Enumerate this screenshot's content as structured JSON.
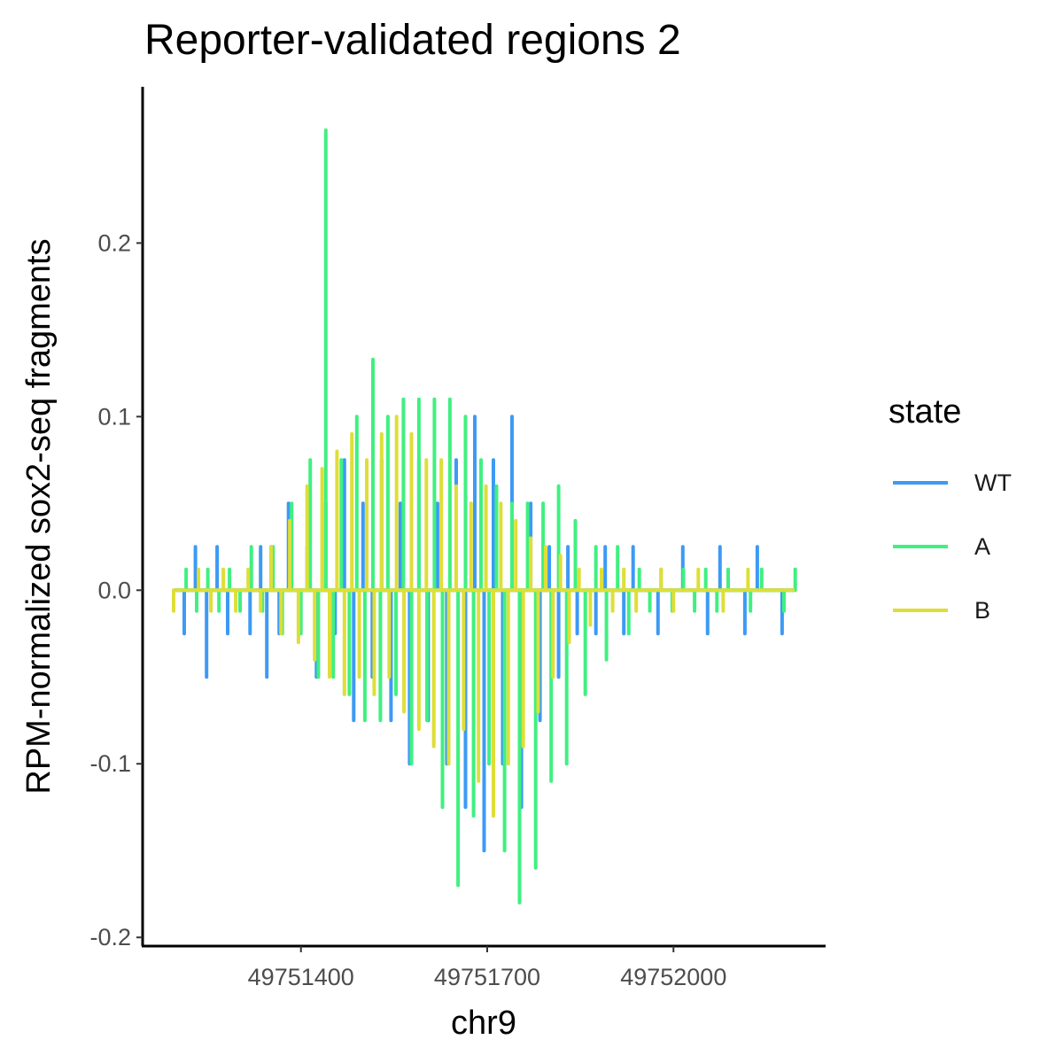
{
  "chart_data": {
    "type": "line",
    "title": "Reporter-validated regions 2",
    "xlabel": "chr9",
    "ylabel": "RPM-normalized sox2-seq fragments",
    "xlim": [
      49751145,
      49752245
    ],
    "ylim": [
      -0.205,
      0.29
    ],
    "x_ticks": [
      49751400,
      49751700,
      49752000
    ],
    "x_tick_labels": [
      "49751400",
      "49751700",
      "49752000"
    ],
    "y_ticks": [
      -0.2,
      -0.1,
      0.0,
      0.1,
      0.2
    ],
    "y_tick_labels": [
      "-0.2",
      "-0.1",
      "0.0",
      "0.1",
      "0.2"
    ],
    "grid": false,
    "legend_title": "state",
    "legend_position": "right",
    "series": [
      {
        "name": "WT",
        "color": "#3d9af5",
        "x": [
          49751195,
          49751212,
          49751230,
          49751248,
          49751265,
          49751282,
          49751300,
          49751318,
          49751335,
          49751345,
          49751352,
          49751365,
          49751380,
          49751398,
          49751410,
          49751425,
          49751440,
          49751455,
          49751470,
          49751485,
          49751500,
          49751515,
          49751530,
          49751545,
          49751560,
          49751575,
          49751590,
          49751605,
          49751620,
          49751635,
          49751650,
          49751665,
          49751680,
          49751695,
          49751710,
          49751725,
          49751740,
          49751755,
          49751770,
          49751785,
          49751800,
          49751815,
          49751830,
          49751845,
          49751860,
          49751875,
          49751890,
          49751905,
          49751920,
          49751935,
          49751955,
          49751975,
          49751995,
          49752015,
          49752035,
          49752055,
          49752075,
          49752095,
          49752115,
          49752135,
          49752155,
          49752175,
          49752195
        ],
        "y": [
          0.0,
          -0.025,
          0.025,
          -0.05,
          0.025,
          -0.025,
          0.0,
          -0.025,
          0.025,
          -0.05,
          0.025,
          -0.025,
          0.05,
          -0.025,
          0.025,
          -0.05,
          0.05,
          -0.025,
          0.075,
          -0.075,
          0.05,
          -0.05,
          0.075,
          -0.075,
          0.05,
          -0.1,
          0.075,
          -0.075,
          0.05,
          -0.1,
          0.075,
          -0.125,
          0.1,
          -0.15,
          0.075,
          -0.1,
          0.1,
          -0.125,
          0.05,
          -0.075,
          0.025,
          -0.05,
          0.025,
          -0.025,
          0.0,
          -0.025,
          0.025,
          0.0,
          -0.025,
          0.025,
          0.0,
          -0.025,
          0.0,
          0.025,
          0.0,
          -0.025,
          0.025,
          0.0,
          -0.025,
          0.025,
          0.0,
          -0.025,
          0.0
        ]
      },
      {
        "name": "A",
        "color": "#40f080",
        "x": [
          49751198,
          49751215,
          49751232,
          49751250,
          49751268,
          49751285,
          49751302,
          49751320,
          49751338,
          49751355,
          49751370,
          49751385,
          49751400,
          49751415,
          49751428,
          49751440,
          49751452,
          49751465,
          49751478,
          49751490,
          49751503,
          49751516,
          49751528,
          49751540,
          49751553,
          49751565,
          49751578,
          49751590,
          49751603,
          49751615,
          49751628,
          49751640,
          49751653,
          49751665,
          49751678,
          49751690,
          49751703,
          49751715,
          49751728,
          49751740,
          49751752,
          49751765,
          49751778,
          49751790,
          49751803,
          49751815,
          49751828,
          49751842,
          49751858,
          49751875,
          49751892,
          49751910,
          49751928,
          49751945,
          49751962,
          49751980,
          49751998,
          49752016,
          49752034,
          49752052,
          49752070,
          49752088,
          49752106,
          49752124,
          49752142,
          49752160,
          49752178,
          49752196
        ],
        "y": [
          0.0,
          0.012,
          -0.012,
          0.012,
          -0.012,
          0.012,
          -0.012,
          0.025,
          -0.012,
          0.025,
          -0.025,
          0.05,
          -0.025,
          0.075,
          -0.05,
          0.265,
          -0.05,
          0.075,
          -0.06,
          0.1,
          -0.075,
          0.133,
          -0.075,
          0.1,
          -0.06,
          0.11,
          -0.1,
          0.11,
          -0.075,
          0.11,
          -0.125,
          0.11,
          -0.17,
          0.1,
          -0.13,
          0.075,
          -0.1,
          0.06,
          -0.15,
          0.05,
          -0.18,
          0.05,
          -0.16,
          0.05,
          -0.11,
          0.06,
          -0.1,
          0.04,
          -0.06,
          0.025,
          -0.04,
          0.025,
          -0.025,
          0.012,
          -0.012,
          0.012,
          -0.012,
          0.012,
          -0.012,
          0.012,
          -0.012,
          0.012,
          0.0,
          -0.012,
          0.012,
          0.0,
          -0.012,
          0.012
        ]
      },
      {
        "name": "B",
        "color": "#dede38",
        "x": [
          49751195,
          49751215,
          49751235,
          49751255,
          49751275,
          49751295,
          49751315,
          49751335,
          49751352,
          49751368,
          49751382,
          49751396,
          49751410,
          49751422,
          49751434,
          49751446,
          49751458,
          49751470,
          49751482,
          49751494,
          49751506,
          49751518,
          49751530,
          49751542,
          49751554,
          49751566,
          49751578,
          49751590,
          49751602,
          49751614,
          49751626,
          49751638,
          49751650,
          49751662,
          49751674,
          49751686,
          49751698,
          49751710,
          49751722,
          49751734,
          49751746,
          49751758,
          49751770,
          49751782,
          49751794,
          49751806,
          49751818,
          49751832,
          49751848,
          49751866,
          49751884,
          49751902,
          49751920,
          49751940,
          49751960,
          49751980,
          49752000,
          49752020,
          49752040,
          49752060,
          49752080,
          49752100,
          49752120,
          49752140,
          49752160,
          49752180,
          49752195
        ],
        "y": [
          -0.012,
          0.0,
          0.012,
          -0.012,
          0.012,
          -0.012,
          0.012,
          -0.012,
          0.025,
          -0.025,
          0.04,
          -0.03,
          0.06,
          -0.04,
          0.07,
          -0.05,
          0.08,
          -0.06,
          0.09,
          -0.05,
          0.075,
          -0.06,
          0.09,
          -0.05,
          0.1,
          -0.07,
          0.09,
          -0.08,
          0.075,
          -0.09,
          0.075,
          -0.1,
          0.06,
          -0.08,
          0.05,
          -0.11,
          0.06,
          -0.13,
          0.05,
          -0.1,
          0.04,
          -0.09,
          0.03,
          -0.07,
          0.025,
          -0.05,
          0.02,
          -0.03,
          0.012,
          -0.02,
          0.012,
          -0.012,
          0.012,
          -0.012,
          0.0,
          0.012,
          -0.012,
          0.0,
          0.012,
          0.0,
          -0.012,
          0.0,
          0.012,
          0.0,
          0.0,
          0.0,
          0.0
        ]
      }
    ]
  }
}
